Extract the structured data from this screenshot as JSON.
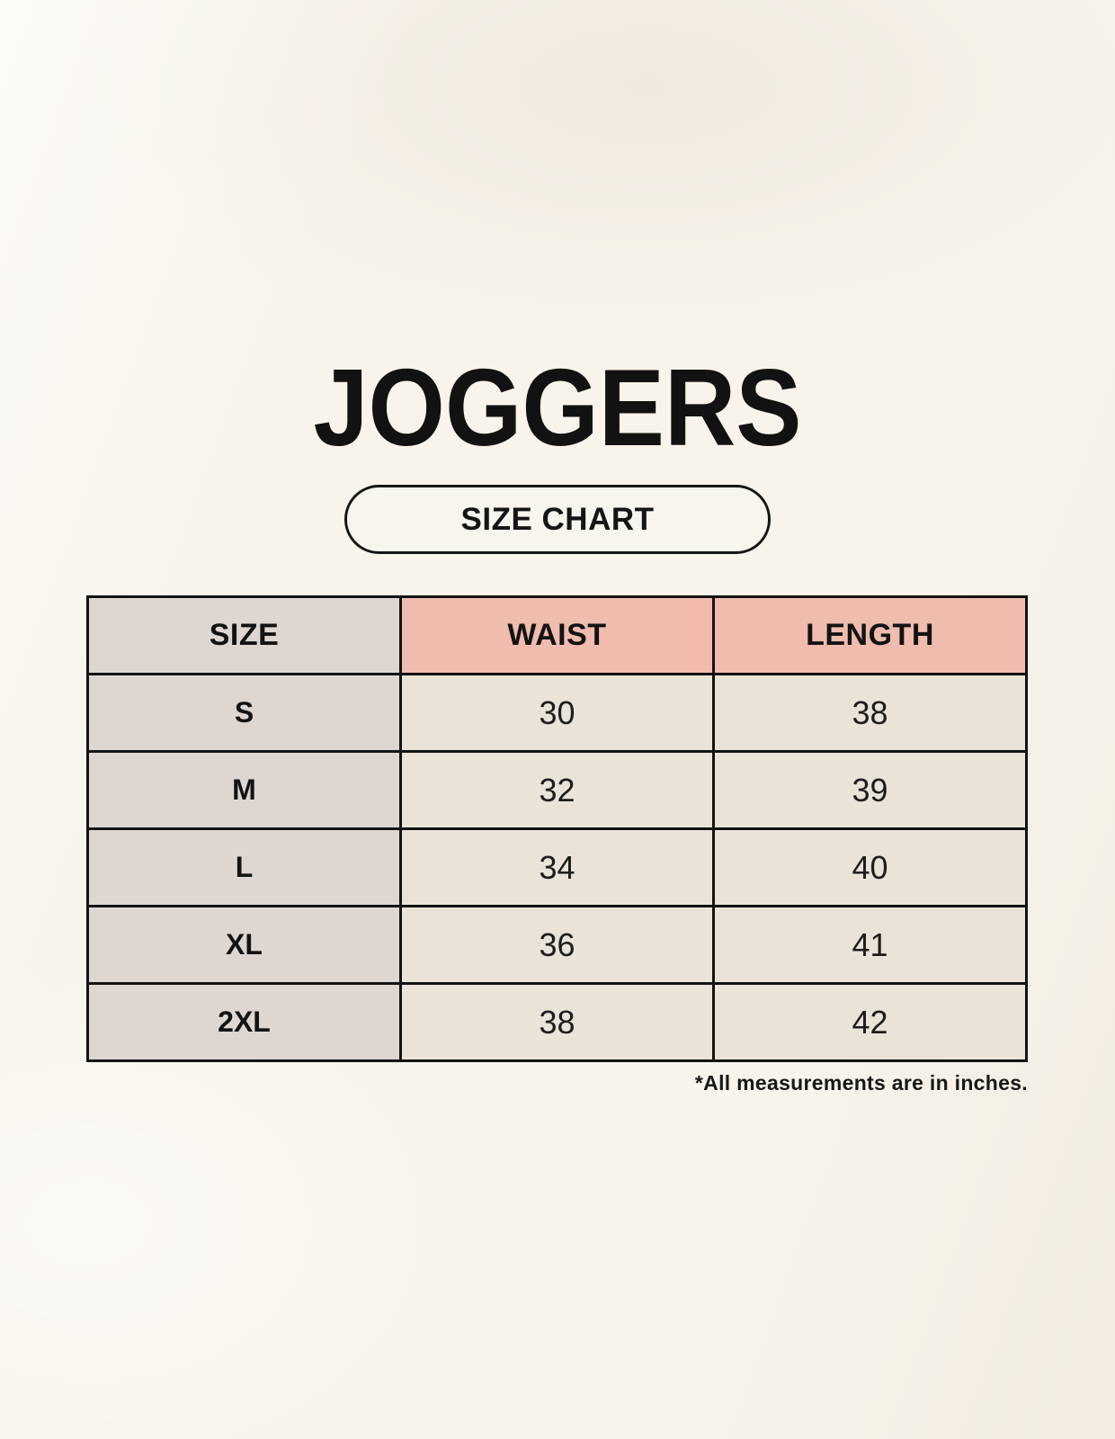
{
  "page": {
    "title": "JOGGERS",
    "badge_label": "SIZE CHART",
    "footnote": "*All measurements are in inches."
  },
  "table": {
    "headers": [
      "SIZE",
      "WAIST",
      "LENGTH"
    ],
    "rows": [
      {
        "size": "S",
        "waist": "30",
        "length": "38"
      },
      {
        "size": "M",
        "waist": "32",
        "length": "39"
      },
      {
        "size": "L",
        "waist": "34",
        "length": "40"
      },
      {
        "size": "XL",
        "waist": "36",
        "length": "41"
      },
      {
        "size": "2XL",
        "waist": "38",
        "length": "42"
      }
    ]
  },
  "colors": {
    "background": "#f8f4ec",
    "size_column": "#ded6d1",
    "header_accent": "#efbcae",
    "data_cell": "#eae3d7",
    "border": "#131313",
    "text": "#141414"
  },
  "chart_data": {
    "type": "table",
    "title": "JOGGERS",
    "subtitle": "SIZE CHART",
    "columns": [
      "SIZE",
      "WAIST",
      "LENGTH"
    ],
    "rows": [
      [
        "S",
        "30",
        "38"
      ],
      [
        "M",
        "32",
        "39"
      ],
      [
        "L",
        "34",
        "40"
      ],
      [
        "XL",
        "36",
        "41"
      ],
      [
        "2XL",
        "38",
        "42"
      ]
    ],
    "footnote": "*All measurements are in inches.",
    "units": "inches"
  }
}
